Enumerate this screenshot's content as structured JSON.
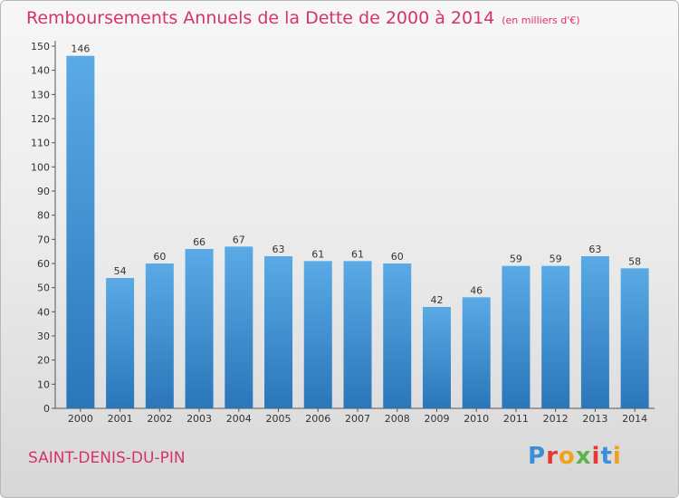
{
  "title": "Remboursements Annuels de la Dette de 2000 à 2014",
  "unit": "(en milliers d'€)",
  "commune": "SAINT-DENIS-DU-PIN",
  "logo": {
    "p": "P",
    "r": "r",
    "o": "o",
    "x": "x",
    "i": "i",
    "t": "t",
    "i2": "i"
  },
  "colors": {
    "bar": "#3d8fd1",
    "title": "#d6336c"
  },
  "chart_data": {
    "type": "bar",
    "title": "Remboursements Annuels de la Dette de 2000 à 2014",
    "categories": [
      "2000",
      "2001",
      "2002",
      "2003",
      "2004",
      "2005",
      "2006",
      "2007",
      "2008",
      "2009",
      "2010",
      "2011",
      "2012",
      "2013",
      "2014"
    ],
    "values": [
      146,
      54,
      60,
      66,
      67,
      63,
      61,
      61,
      60,
      42,
      46,
      59,
      59,
      63,
      58
    ],
    "ylim": [
      0,
      150
    ],
    "yticks": [
      0,
      10,
      20,
      30,
      40,
      50,
      60,
      70,
      80,
      90,
      100,
      110,
      120,
      130,
      140,
      150
    ],
    "grid": false
  }
}
